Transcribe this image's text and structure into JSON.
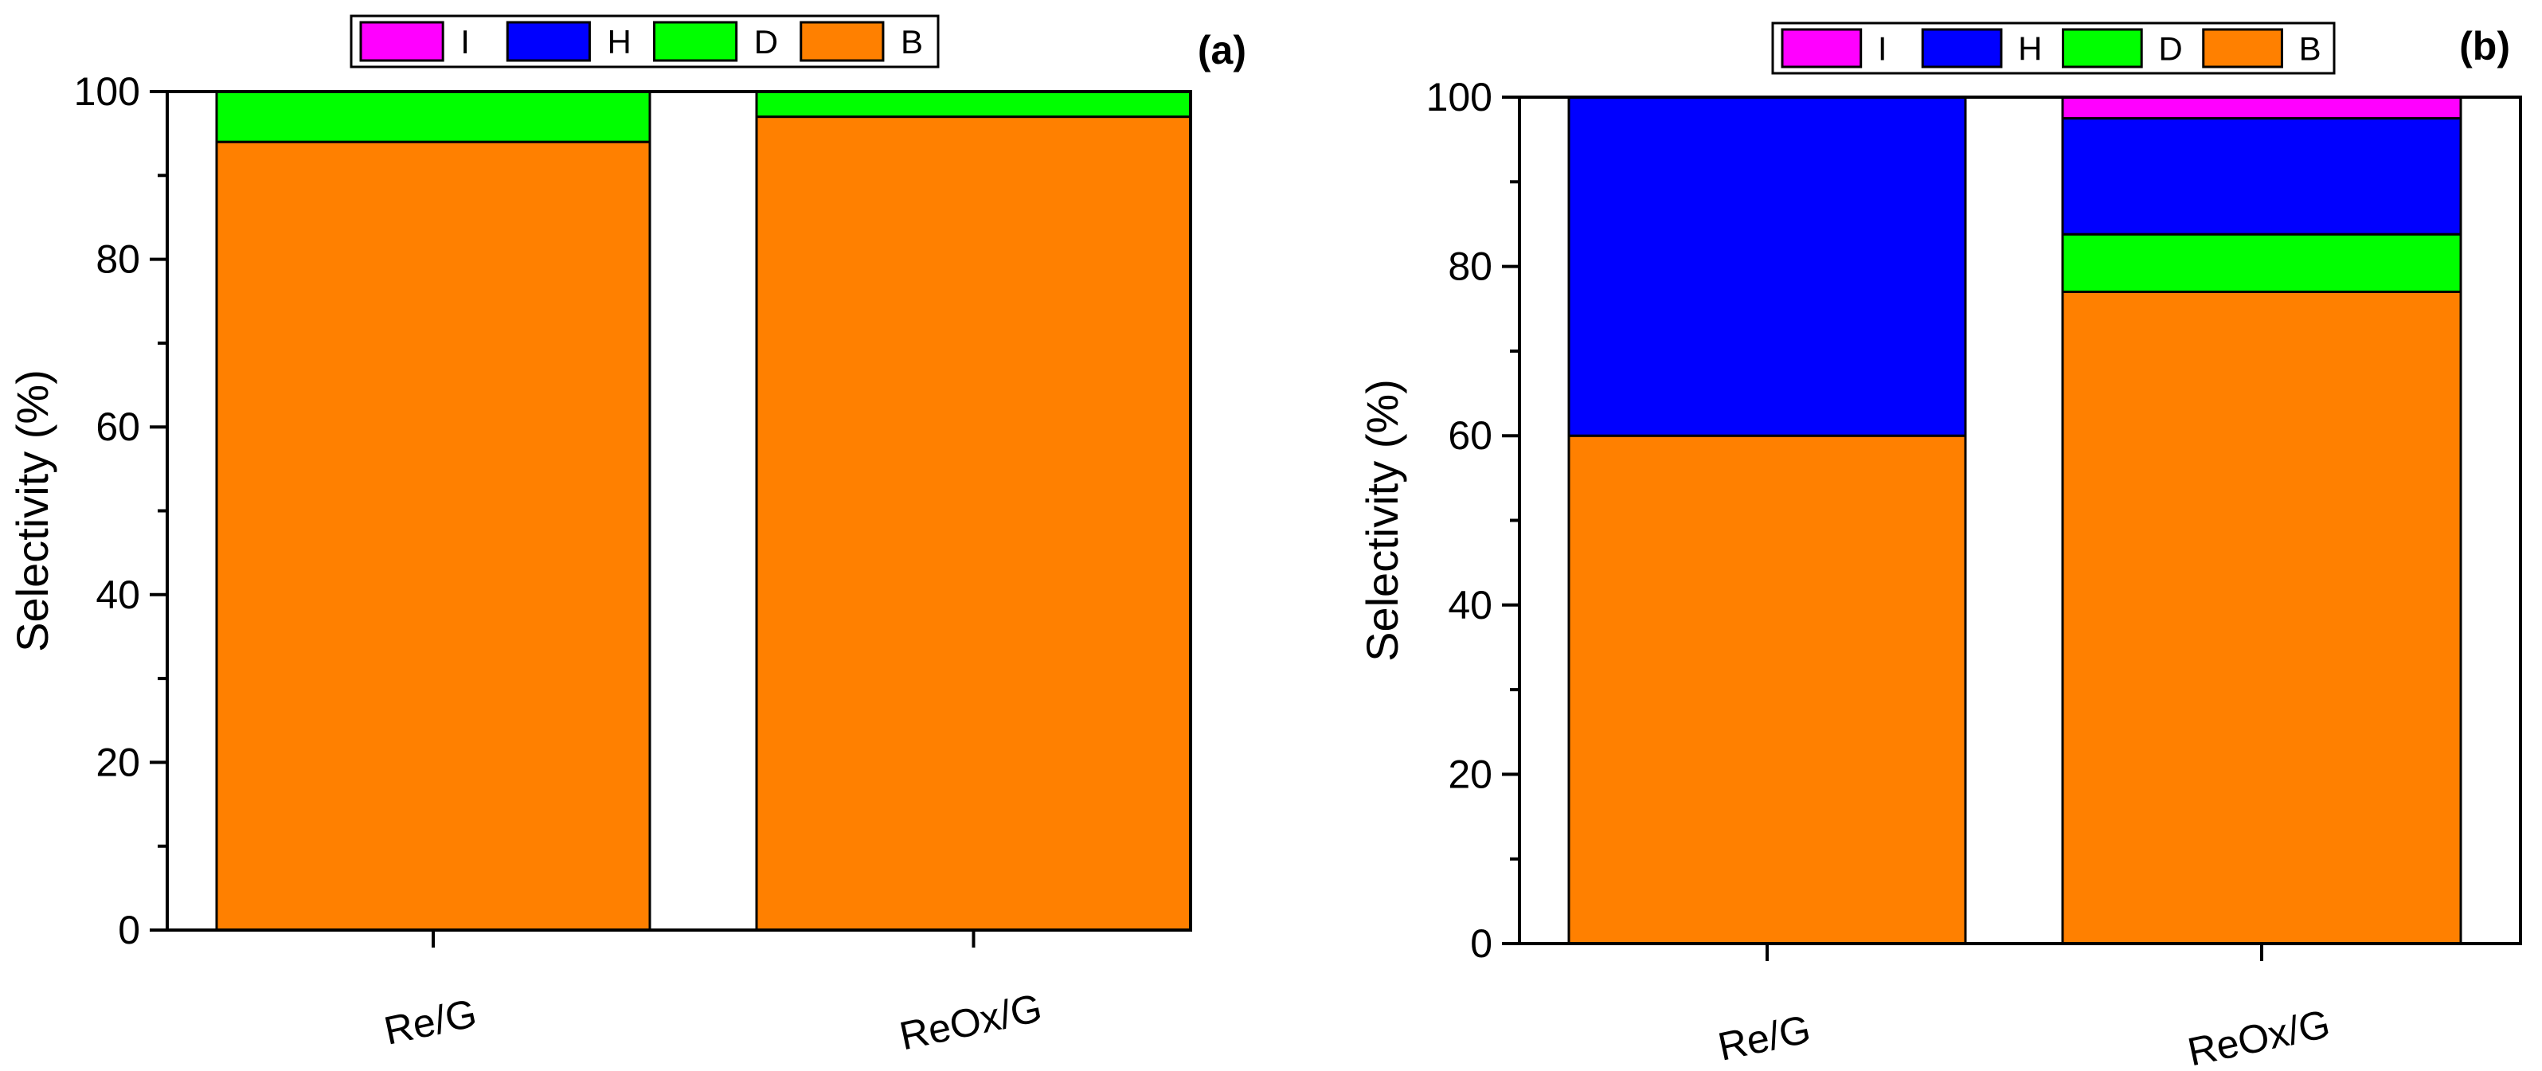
{
  "chart_data": [
    {
      "type": "bar",
      "stacked": true,
      "panel_label": "(a)",
      "title": "",
      "xlabel": "",
      "ylabel": "Selectivity (%)",
      "ylim": [
        0,
        100
      ],
      "yticks": [
        0,
        20,
        40,
        60,
        80,
        100
      ],
      "categories": [
        "Re/G",
        "ReOx/G"
      ],
      "legend": [
        "I",
        "H",
        "D",
        "B"
      ],
      "legend_placement": "top-center",
      "series": [
        {
          "name": "B",
          "color": "#FF8000",
          "values": [
            94,
            97
          ]
        },
        {
          "name": "D",
          "color": "#00FF00",
          "values": [
            6,
            3
          ]
        },
        {
          "name": "H",
          "color": "#0000FF",
          "values": [
            0,
            0
          ]
        },
        {
          "name": "I",
          "color": "#FF00FF",
          "values": [
            0,
            0
          ]
        }
      ]
    },
    {
      "type": "bar",
      "stacked": true,
      "panel_label": "(b)",
      "title": "",
      "xlabel": "",
      "ylabel": "Selectivity (%)",
      "ylim": [
        0,
        100
      ],
      "yticks": [
        0,
        20,
        40,
        60,
        80,
        100
      ],
      "categories": [
        "Re/G",
        "ReOx/G"
      ],
      "legend": [
        "I",
        "H",
        "D",
        "B"
      ],
      "legend_placement": "top-center",
      "series": [
        {
          "name": "B",
          "color": "#FF8000",
          "values": [
            60,
            77
          ]
        },
        {
          "name": "D",
          "color": "#00FF00",
          "values": [
            0,
            6.8
          ]
        },
        {
          "name": "H",
          "color": "#0000FF",
          "values": [
            40,
            13.7
          ]
        },
        {
          "name": "I",
          "color": "#FF00FF",
          "values": [
            0,
            2.5
          ]
        }
      ]
    }
  ]
}
